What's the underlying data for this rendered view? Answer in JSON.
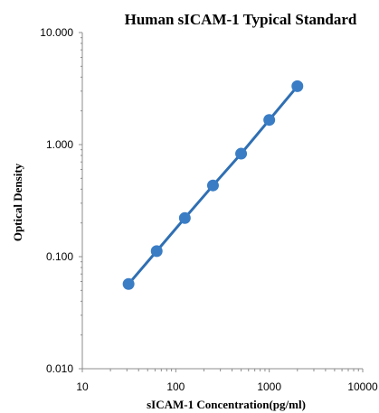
{
  "chart_data": {
    "type": "scatter",
    "title": "Human sICAM-1 Typical Standard",
    "xlabel": "sICAM-1 Concentration(pg/ml)",
    "ylabel": "Optical Density",
    "x_scale": "log",
    "y_scale": "log",
    "xlim": [
      10,
      10000
    ],
    "ylim": [
      0.01,
      10
    ],
    "x_ticks": [
      "10",
      "100",
      "1000",
      "10000"
    ],
    "y_ticks": [
      "0.010",
      "0.100",
      "1.000",
      "10.000"
    ],
    "grid": false,
    "series": [
      {
        "x": [
          31.25,
          62.5,
          125,
          250,
          500,
          1000,
          2000
        ],
        "y": [
          0.057,
          0.112,
          0.221,
          0.432,
          0.83,
          1.66,
          3.32
        ],
        "color": "#3a7dc5",
        "line_color": "#2f6fb3",
        "trendline": true
      }
    ]
  }
}
